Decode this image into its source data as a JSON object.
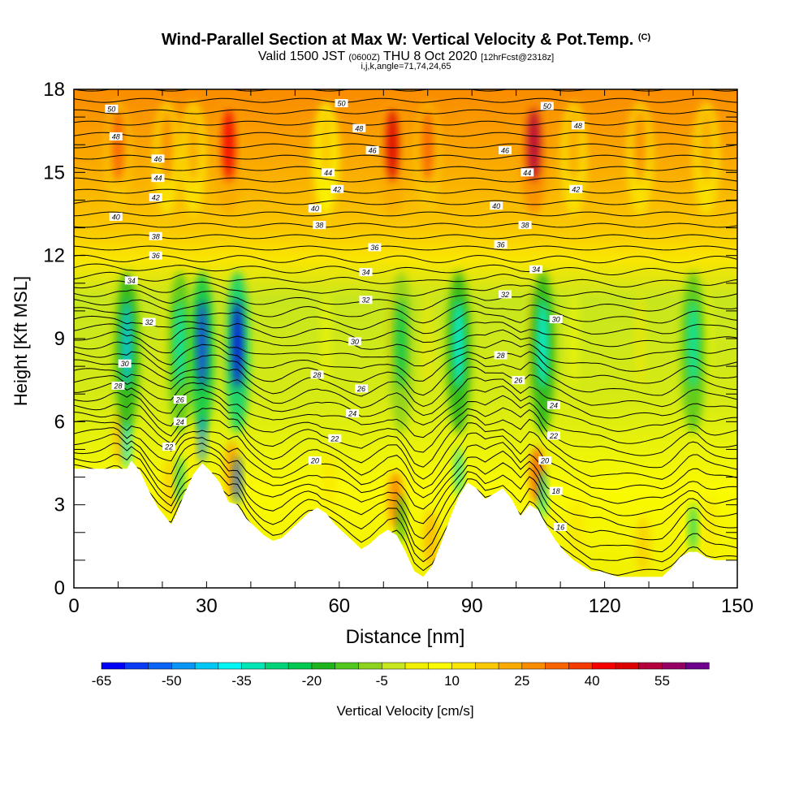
{
  "header": {
    "title": "Wind-Parallel Section at Max W: Vertical Velocity & Pot.Temp.",
    "title_mark": "(C)",
    "subtitle_main": "Valid 1500 JST",
    "subtitle_utc": "(0600Z)",
    "subtitle_date": "THU 8 Oct 2020",
    "subtitle_fcst": "[12hrFcst@2318z]",
    "subtitle_params": "i,j,k,angle=71,74,24,65"
  },
  "chart_data": {
    "type": "heatmap",
    "xlabel": "Distance [nm]",
    "ylabel": "Height [Kft MSL]",
    "xlim": [
      0,
      150
    ],
    "ylim": [
      0,
      18
    ],
    "xticks": [
      "0",
      "30",
      "60",
      "90",
      "120",
      "150"
    ],
    "yticks": [
      "0",
      "3",
      "6",
      "9",
      "12",
      "15",
      "18"
    ],
    "colorbar": {
      "label": "Vertical Velocity [cm/s]",
      "tick_labels": [
        "-65",
        "-50",
        "-35",
        "-20",
        "-5",
        "10",
        "25",
        "40",
        "55"
      ],
      "levels": [
        -65,
        -60,
        -55,
        -50,
        -45,
        -40,
        -35,
        -30,
        -25,
        -20,
        -15,
        -10,
        -5,
        0,
        5,
        10,
        15,
        20,
        25,
        30,
        35,
        40,
        45,
        50,
        55,
        60,
        65
      ],
      "colors": [
        "#0000f5",
        "#0a3cf5",
        "#0a64f5",
        "#0a96f5",
        "#00c8f5",
        "#00f5f5",
        "#00e6b4",
        "#00d278",
        "#00c850",
        "#1eb41e",
        "#50c81e",
        "#8cd21e",
        "#c8e61e",
        "#f0f000",
        "#fafa00",
        "#fae600",
        "#fac800",
        "#faaa00",
        "#fa8c00",
        "#fa6400",
        "#f53c00",
        "#f50000",
        "#dc0000",
        "#b4003c",
        "#960064",
        "#6e008c"
      ]
    },
    "terrain_profile": {
      "x_nm": [
        0,
        12,
        13,
        15,
        17,
        19,
        21,
        22,
        23,
        25,
        27,
        29,
        31,
        33,
        35,
        37,
        39,
        41,
        43,
        45,
        47,
        49,
        51,
        53,
        55,
        57,
        59,
        61,
        63,
        65,
        67,
        69,
        71,
        73,
        75,
        77,
        79,
        81,
        83,
        85,
        87,
        89,
        91,
        93,
        95,
        97,
        99,
        101,
        103,
        105,
        107,
        109,
        111,
        113,
        115,
        117,
        119,
        121,
        123,
        125,
        127,
        129,
        131,
        133,
        135,
        137,
        139,
        141,
        143,
        145,
        147,
        150
      ],
      "height_kft": [
        4.3,
        4.3,
        4.6,
        4.2,
        3.5,
        2.9,
        2.5,
        2.3,
        2.6,
        3.4,
        4.1,
        4.5,
        4.2,
        3.8,
        3.1,
        3.0,
        2.5,
        2.2,
        1.9,
        1.7,
        1.8,
        2.1,
        2.4,
        2.7,
        2.9,
        2.7,
        2.3,
        2.0,
        1.7,
        1.4,
        1.6,
        1.9,
        2.1,
        1.9,
        1.3,
        0.6,
        0.4,
        0.8,
        1.6,
        2.5,
        3.3,
        3.8,
        3.6,
        3.2,
        3.4,
        3.6,
        3.2,
        2.6,
        3.0,
        2.8,
        2.2,
        1.7,
        1.3,
        1.0,
        0.8,
        0.6,
        0.6,
        0.5,
        0.4,
        0.4,
        0.4,
        0.4,
        0.4,
        0.4,
        0.7,
        1.1,
        1.3,
        1.3,
        1.1,
        1.0,
        1.0,
        1.0
      ]
    },
    "updraft_columns": [
      {
        "x_nm": 10,
        "w_cm_s": 30
      },
      {
        "x_nm": 21,
        "w_cm_s": 25
      },
      {
        "x_nm": 27,
        "w_cm_s": 20
      },
      {
        "x_nm": 35,
        "w_cm_s": 40
      },
      {
        "x_nm": 57,
        "w_cm_s": 15
      },
      {
        "x_nm": 72,
        "w_cm_s": 45
      },
      {
        "x_nm": 80,
        "w_cm_s": 30
      },
      {
        "x_nm": 104,
        "w_cm_s": 50
      },
      {
        "x_nm": 113,
        "w_cm_s": 20
      },
      {
        "x_nm": 128,
        "w_cm_s": 25
      },
      {
        "x_nm": 143,
        "w_cm_s": 20
      }
    ],
    "downdraft_columns": [
      {
        "x_nm": 12,
        "w_cm_s": -45
      },
      {
        "x_nm": 24,
        "w_cm_s": -35
      },
      {
        "x_nm": 29,
        "w_cm_s": -60
      },
      {
        "x_nm": 37,
        "w_cm_s": -65
      },
      {
        "x_nm": 74,
        "w_cm_s": -25
      },
      {
        "x_nm": 87,
        "w_cm_s": -40
      },
      {
        "x_nm": 106,
        "w_cm_s": -40
      },
      {
        "x_nm": 140,
        "w_cm_s": -35
      }
    ],
    "isentrope_labels": [
      {
        "text": "50",
        "x_nm": 8.5,
        "y_kft": 17.3
      },
      {
        "text": "48",
        "x_nm": 9.5,
        "y_kft": 16.3
      },
      {
        "text": "46",
        "x_nm": 19,
        "y_kft": 15.5
      },
      {
        "text": "44",
        "x_nm": 19,
        "y_kft": 14.8
      },
      {
        "text": "42",
        "x_nm": 18.5,
        "y_kft": 14.1
      },
      {
        "text": "40",
        "x_nm": 9.5,
        "y_kft": 13.4
      },
      {
        "text": "38",
        "x_nm": 18.5,
        "y_kft": 12.7
      },
      {
        "text": "36",
        "x_nm": 18.5,
        "y_kft": 12.0
      },
      {
        "text": "34",
        "x_nm": 13,
        "y_kft": 11.1
      },
      {
        "text": "32",
        "x_nm": 17,
        "y_kft": 9.6
      },
      {
        "text": "30",
        "x_nm": 11.5,
        "y_kft": 8.1
      },
      {
        "text": "28",
        "x_nm": 10,
        "y_kft": 7.3
      },
      {
        "text": "26",
        "x_nm": 24,
        "y_kft": 6.8
      },
      {
        "text": "24",
        "x_nm": 24,
        "y_kft": 6.0
      },
      {
        "text": "22",
        "x_nm": 21.5,
        "y_kft": 5.1
      },
      {
        "text": "50",
        "x_nm": 60.5,
        "y_kft": 17.5
      },
      {
        "text": "48",
        "x_nm": 64.5,
        "y_kft": 16.6
      },
      {
        "text": "46",
        "x_nm": 67.5,
        "y_kft": 15.8
      },
      {
        "text": "44",
        "x_nm": 57.5,
        "y_kft": 15.0
      },
      {
        "text": "42",
        "x_nm": 59.5,
        "y_kft": 14.4
      },
      {
        "text": "40",
        "x_nm": 54.5,
        "y_kft": 13.7
      },
      {
        "text": "38",
        "x_nm": 55.5,
        "y_kft": 13.1
      },
      {
        "text": "36",
        "x_nm": 68,
        "y_kft": 12.3
      },
      {
        "text": "34",
        "x_nm": 66,
        "y_kft": 11.4
      },
      {
        "text": "32",
        "x_nm": 66,
        "y_kft": 10.4
      },
      {
        "text": "30",
        "x_nm": 63.5,
        "y_kft": 8.9
      },
      {
        "text": "28",
        "x_nm": 55,
        "y_kft": 7.7
      },
      {
        "text": "26",
        "x_nm": 65,
        "y_kft": 7.2
      },
      {
        "text": "24",
        "x_nm": 63,
        "y_kft": 6.3
      },
      {
        "text": "22",
        "x_nm": 59,
        "y_kft": 5.4
      },
      {
        "text": "20",
        "x_nm": 54.5,
        "y_kft": 4.6
      },
      {
        "text": "50",
        "x_nm": 107,
        "y_kft": 17.4
      },
      {
        "text": "48",
        "x_nm": 114,
        "y_kft": 16.7
      },
      {
        "text": "46",
        "x_nm": 97.5,
        "y_kft": 15.8
      },
      {
        "text": "44",
        "x_nm": 102.5,
        "y_kft": 15.0
      },
      {
        "text": "42",
        "x_nm": 113.5,
        "y_kft": 14.4
      },
      {
        "text": "40",
        "x_nm": 95.5,
        "y_kft": 13.8
      },
      {
        "text": "38",
        "x_nm": 102,
        "y_kft": 13.1
      },
      {
        "text": "36",
        "x_nm": 96.5,
        "y_kft": 12.4
      },
      {
        "text": "34",
        "x_nm": 104.5,
        "y_kft": 11.5
      },
      {
        "text": "32",
        "x_nm": 97.5,
        "y_kft": 10.6
      },
      {
        "text": "30",
        "x_nm": 109,
        "y_kft": 9.7
      },
      {
        "text": "28",
        "x_nm": 96.5,
        "y_kft": 8.4
      },
      {
        "text": "26",
        "x_nm": 100.5,
        "y_kft": 7.5
      },
      {
        "text": "24",
        "x_nm": 108.5,
        "y_kft": 6.6
      },
      {
        "text": "22",
        "x_nm": 108.5,
        "y_kft": 5.5
      },
      {
        "text": "20",
        "x_nm": 106.5,
        "y_kft": 4.6
      },
      {
        "text": "18",
        "x_nm": 109,
        "y_kft": 3.5
      },
      {
        "text": "16",
        "x_nm": 110,
        "y_kft": 2.2
      }
    ]
  }
}
